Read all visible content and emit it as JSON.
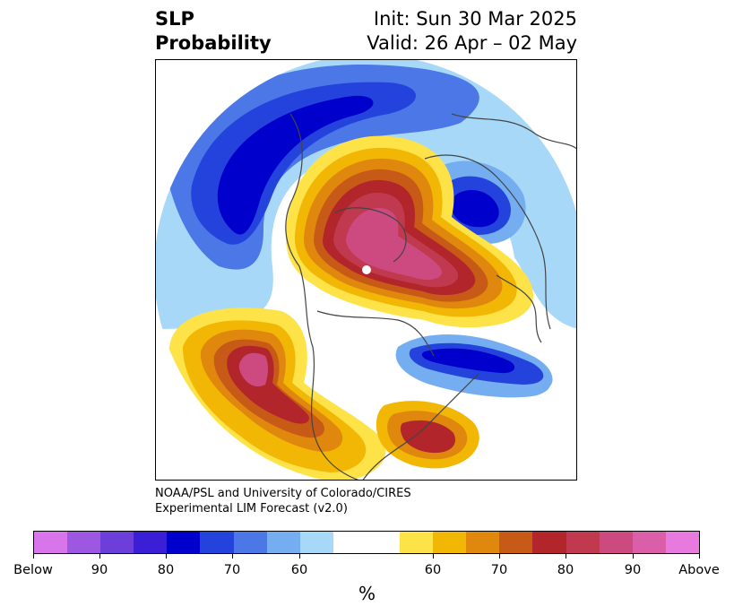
{
  "header": {
    "title_line1": "SLP",
    "title_line2": "Probability",
    "init": "Init: Sun 30 Mar 2025",
    "valid": "Valid: 26 Apr – 02 May"
  },
  "credit": {
    "line1": "NOAA/PSL and University of Colorado/CIRES",
    "line2": "Experimental LIM Forecast (v2.0)"
  },
  "colorbar": {
    "colors": [
      "#d975ea",
      "#9e57e0",
      "#6c3fdb",
      "#3a1fd6",
      "#0000cc",
      "#2443dd",
      "#4c77e6",
      "#75aef0",
      "#a8d8f8",
      "#ffffff",
      "#ffffff",
      "#fde347",
      "#f2b705",
      "#e0880e",
      "#c85a18",
      "#b2252a",
      "#c0394f",
      "#cc4a80",
      "#db5ea8",
      "#e879de"
    ],
    "tick_labels": [
      "Below",
      "90",
      "80",
      "70",
      "60",
      "60",
      "70",
      "80",
      "90",
      "Above"
    ],
    "unit_label": "%"
  },
  "map": {
    "blue_anomaly_color": "#0000cc",
    "red_anomaly_color": "#b2252a",
    "magenta_anomaly_color": "#d24d8c"
  }
}
